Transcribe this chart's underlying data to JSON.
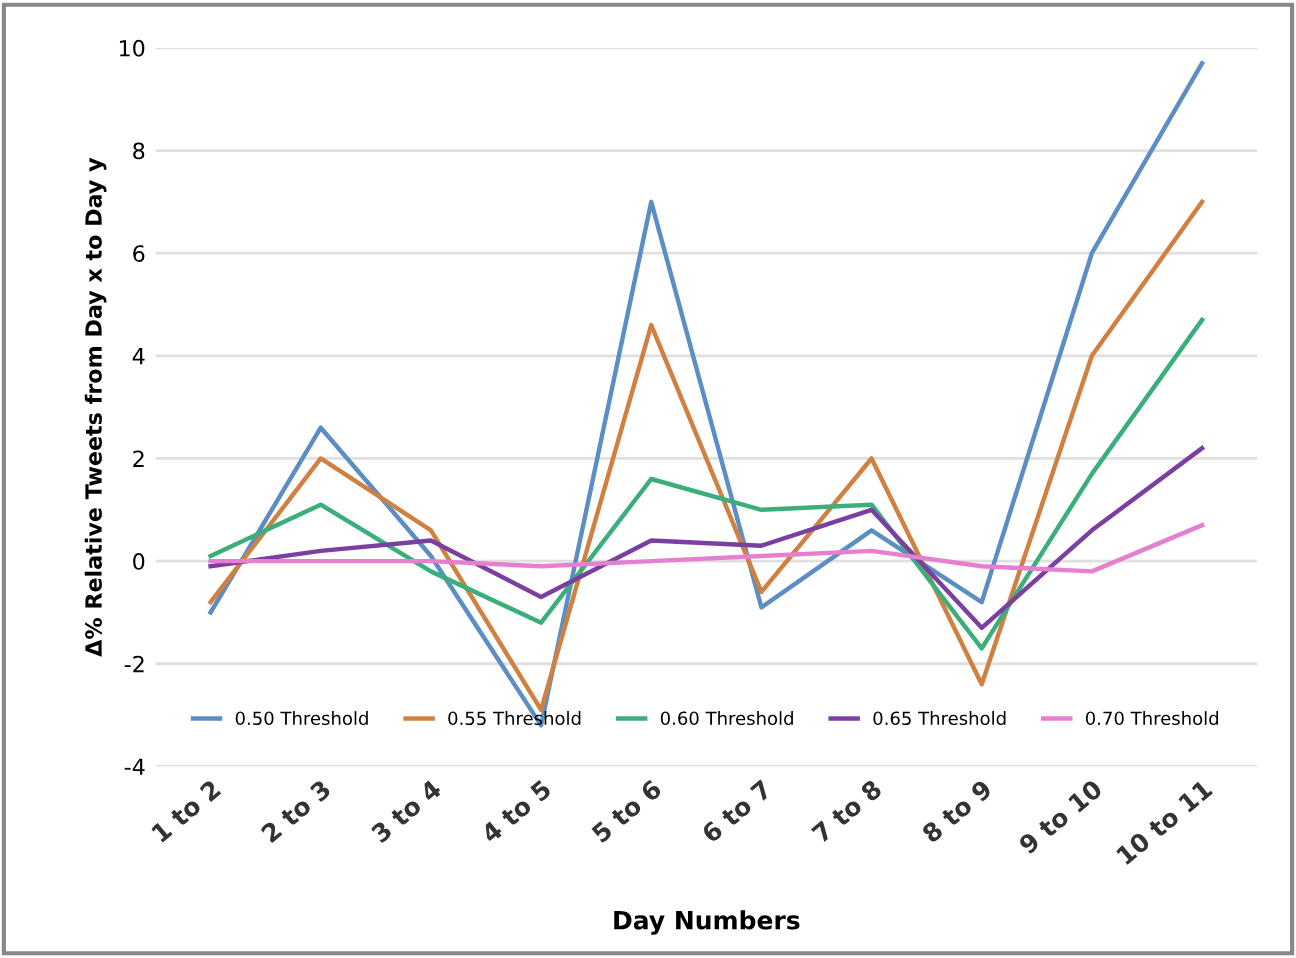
{
  "chart_data": {
    "type": "line",
    "xlabel": "Day Numbers",
    "ylabel": "Δ% Relative Tweets from Day x to Day y",
    "categories": [
      "1 to 2",
      "2 to 3",
      "3 to 4",
      "4 to 5",
      "5 to 6",
      "6 to 7",
      "7 to 8",
      "8 to 9",
      "9 to 10",
      "10 to 11"
    ],
    "series": [
      {
        "name": "0.50 Threshold",
        "color": "#5b8ec4",
        "values": [
          -1.0,
          2.6,
          0.1,
          -3.2,
          7.0,
          -0.9,
          0.6,
          -0.8,
          6.0,
          9.7
        ]
      },
      {
        "name": "0.55 Threshold",
        "color": "#d08040",
        "values": [
          -0.8,
          2.0,
          0.6,
          -2.9,
          4.6,
          -0.6,
          2.0,
          -2.4,
          4.0,
          7.0
        ]
      },
      {
        "name": "0.60 Threshold",
        "color": "#3cae7c",
        "values": [
          0.1,
          1.1,
          -0.2,
          -1.2,
          1.6,
          1.0,
          1.1,
          -1.7,
          1.7,
          4.7
        ]
      },
      {
        "name": "0.65 Threshold",
        "color": "#7a3fa0",
        "values": [
          -0.1,
          0.2,
          0.4,
          -0.7,
          0.4,
          0.3,
          1.0,
          -1.3,
          0.6,
          2.2
        ]
      },
      {
        "name": "0.70 Threshold",
        "color": "#e67fd0",
        "values": [
          0.0,
          0.0,
          0.0,
          -0.1,
          0.0,
          0.1,
          0.2,
          -0.1,
          -0.2,
          0.7
        ]
      }
    ],
    "ylim": [
      -4,
      10
    ],
    "yticks": [
      -4,
      -2,
      0,
      2,
      4,
      6,
      8,
      10
    ],
    "grid": "y",
    "legend": "bottom",
    "marker": "none",
    "line_style": "solid"
  }
}
